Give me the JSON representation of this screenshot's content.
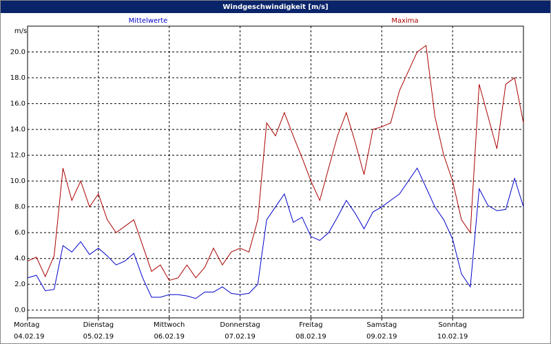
{
  "chart_data": {
    "type": "line",
    "title": "Windgeschwindigkeit [m/s]",
    "y_label": "m/s",
    "x": [
      0,
      0.125,
      0.25,
      0.375,
      0.5,
      0.625,
      0.75,
      0.875,
      1,
      1.125,
      1.25,
      1.375,
      1.5,
      1.625,
      1.75,
      1.875,
      2,
      2.125,
      2.25,
      2.375,
      2.5,
      2.625,
      2.75,
      2.875,
      3,
      3.125,
      3.25,
      3.375,
      3.5,
      3.625,
      3.75,
      3.875,
      4,
      4.125,
      4.25,
      4.375,
      4.5,
      4.625,
      4.75,
      4.875,
      5,
      5.125,
      5.25,
      5.375,
      5.5,
      5.625,
      5.75,
      5.875,
      6,
      6.125,
      6.25,
      6.375,
      6.5,
      6.625,
      6.75,
      6.875,
      7
    ],
    "series": [
      {
        "name": "Mittelwerte",
        "color": "#0000cc",
        "values": [
          2.5,
          2.7,
          1.5,
          1.6,
          5.0,
          4.5,
          5.3,
          4.3,
          4.8,
          4.2,
          3.5,
          3.8,
          4.4,
          2.5,
          1.0,
          1.0,
          1.2,
          1.2,
          1.1,
          0.9,
          1.4,
          1.4,
          1.8,
          1.3,
          1.2,
          1.3,
          2.0,
          7.0,
          8.0,
          9.0,
          6.8,
          7.2,
          5.7,
          5.4,
          6.0,
          7.2,
          8.5,
          7.5,
          6.3,
          7.6,
          8.0,
          8.5,
          9.0,
          10.0,
          11.0,
          9.5,
          8.0,
          7.0,
          5.5,
          2.8,
          1.8,
          9.4,
          8.1,
          7.7,
          7.8,
          10.2,
          8.0
        ]
      },
      {
        "name": "Maxima",
        "color": "#aa0000",
        "values": [
          3.8,
          4.1,
          2.6,
          4.2,
          11.0,
          8.5,
          10.0,
          8.0,
          9.0,
          7.0,
          6.0,
          6.5,
          7.0,
          5.0,
          3.0,
          3.5,
          2.3,
          2.5,
          3.5,
          2.5,
          3.3,
          4.8,
          3.5,
          4.5,
          4.8,
          4.5,
          7.0,
          14.5,
          13.5,
          15.3,
          13.5,
          11.8,
          10.0,
          8.5,
          11.0,
          13.5,
          15.3,
          13.0,
          10.5,
          14.0,
          14.2,
          14.5,
          17.0,
          18.5,
          20.0,
          20.5,
          15.0,
          12.0,
          10.0,
          7.0,
          6.0,
          17.5,
          15.0,
          12.5,
          17.5,
          18.0,
          14.5
        ]
      }
    ],
    "xlim": [
      0,
      7
    ],
    "xticks": [
      {
        "value": 0,
        "label": "Montag"
      },
      {
        "value": 1,
        "label": "Dienstag"
      },
      {
        "value": 2,
        "label": "Mittwoch"
      },
      {
        "value": 3,
        "label": "Donnerstag"
      },
      {
        "value": 4,
        "label": "Freitag"
      },
      {
        "value": 5,
        "label": "Samstag"
      },
      {
        "value": 6,
        "label": "Sonntag"
      }
    ],
    "xtick_dates": [
      "04.02.19",
      "05.02.19",
      "06.02.19",
      "07.02.19",
      "08.02.19",
      "09.02.19",
      "10.02.19"
    ],
    "ylim": [
      -0.6,
      22.0
    ],
    "yticks": [
      {
        "value": 0,
        "label": "0.0"
      },
      {
        "value": 2,
        "label": "2.0"
      },
      {
        "value": 4,
        "label": "4.0"
      },
      {
        "value": 6,
        "label": "6.0"
      },
      {
        "value": 8,
        "label": "8.0"
      },
      {
        "value": 10,
        "label": "10.0"
      },
      {
        "value": 12,
        "label": "12.0"
      },
      {
        "value": 14,
        "label": "14.0"
      },
      {
        "value": 16,
        "label": "16.0"
      },
      {
        "value": 18,
        "label": "18.0"
      },
      {
        "value": 20,
        "label": "20.0"
      }
    ],
    "grid": true
  }
}
